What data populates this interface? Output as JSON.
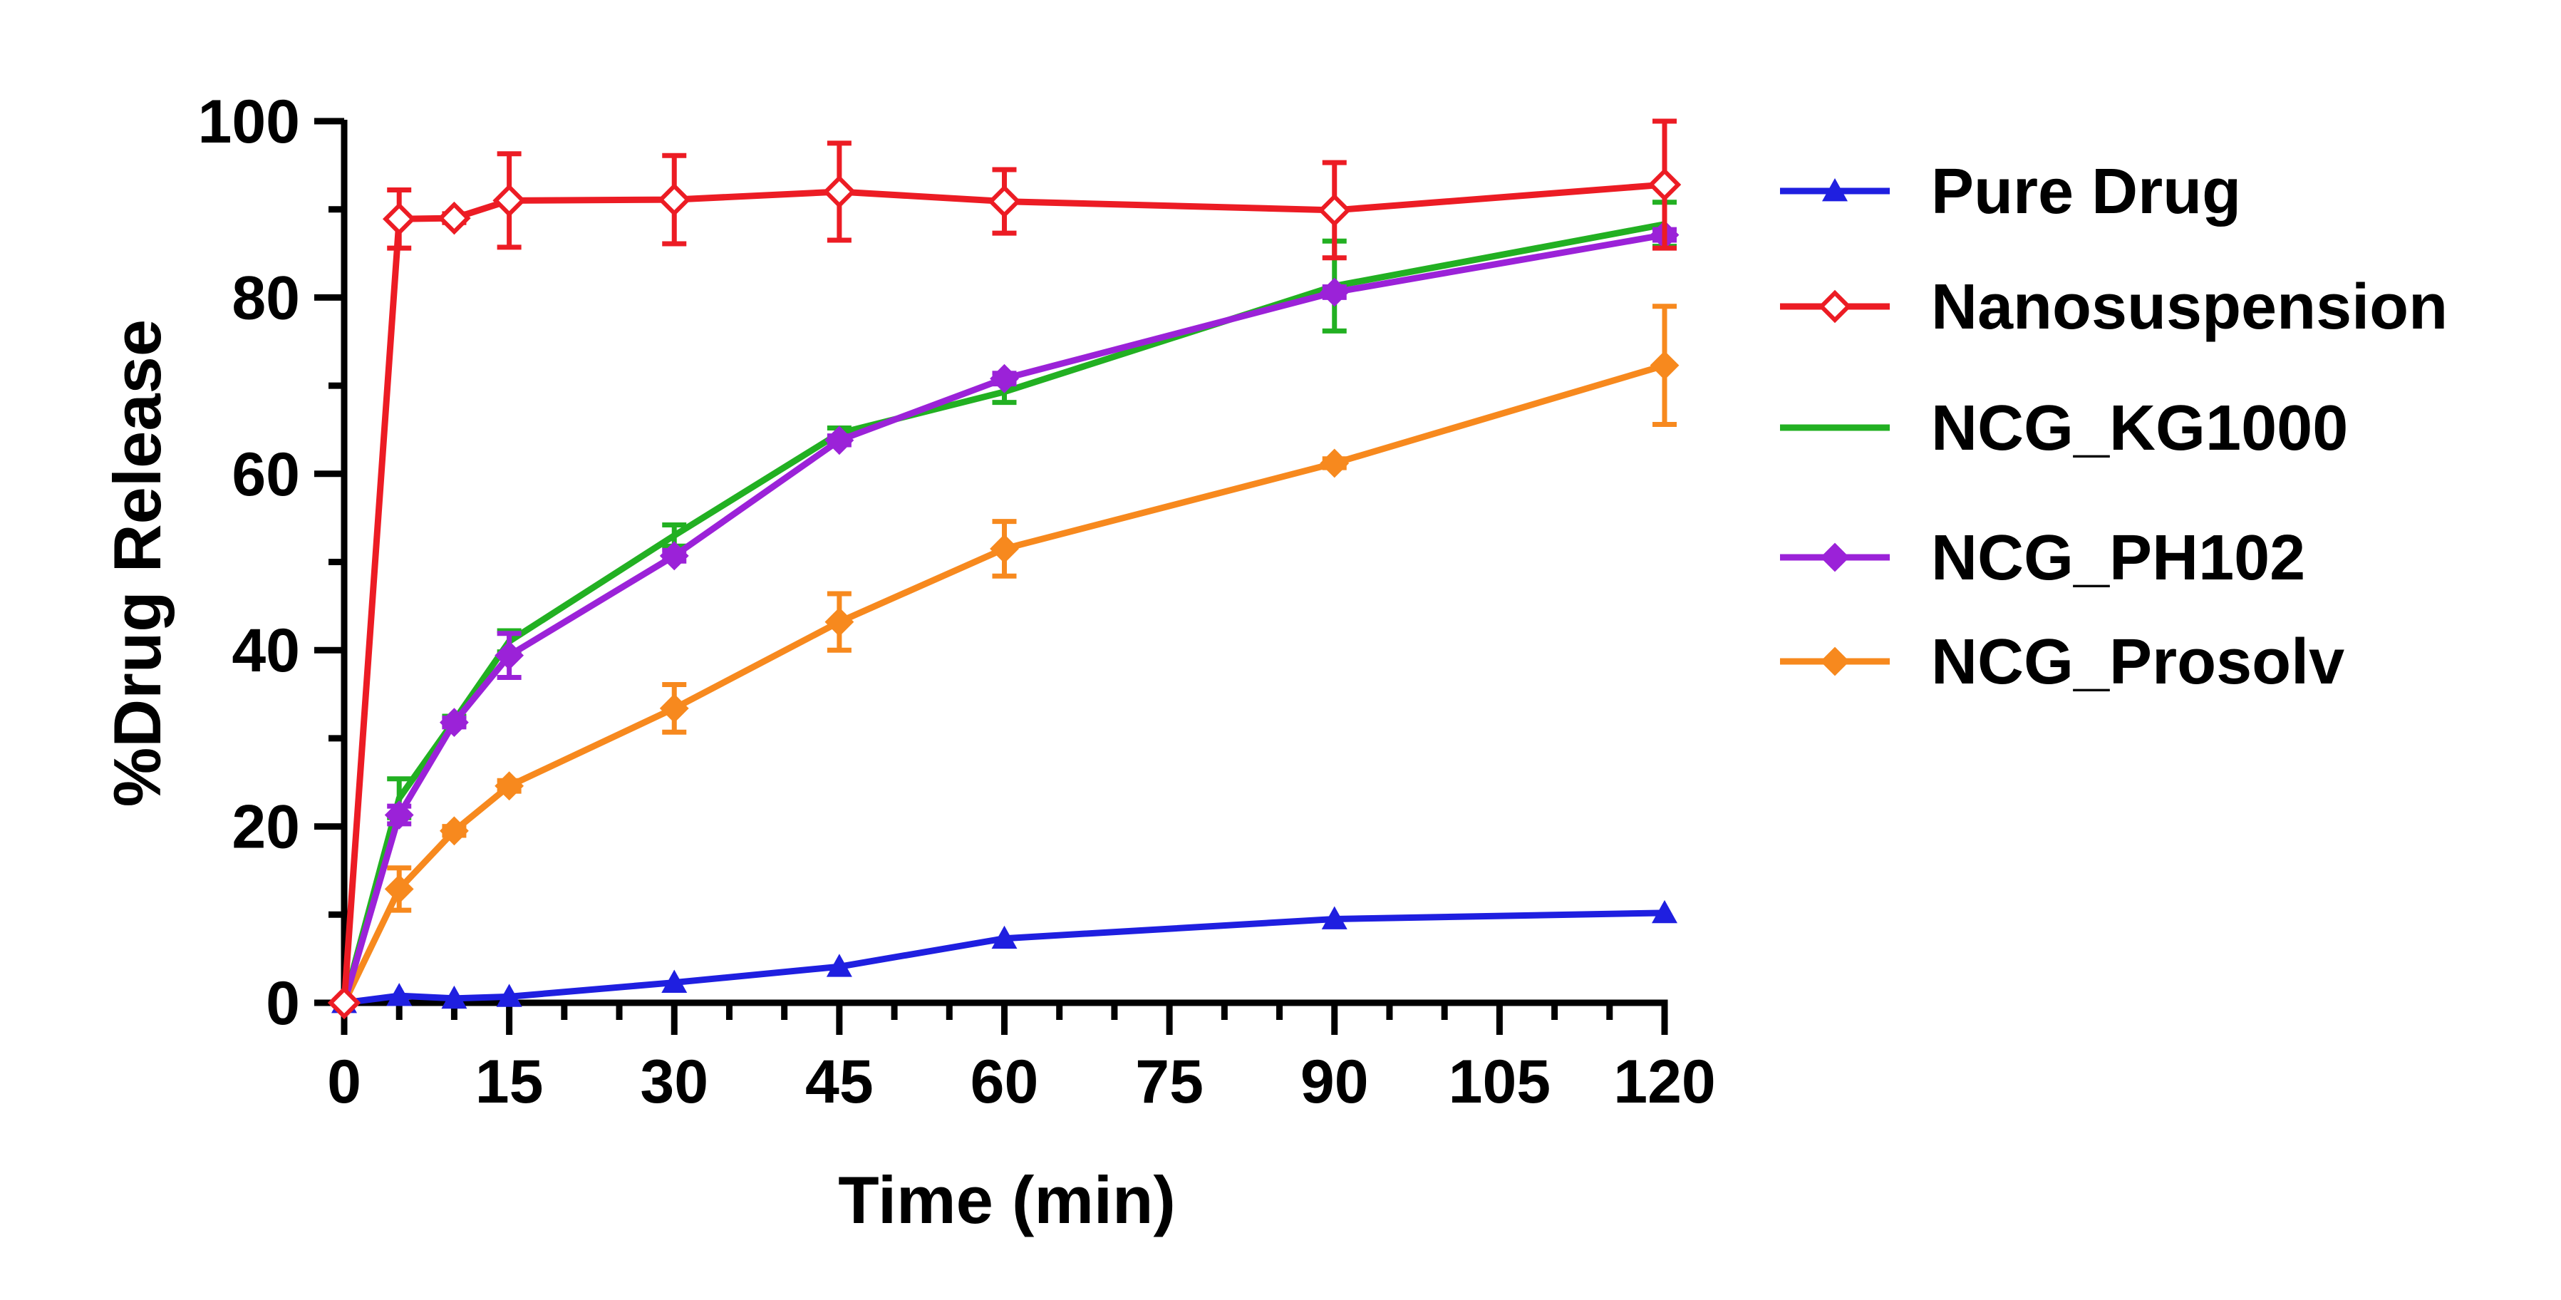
{
  "chart_data": {
    "type": "line",
    "title": "",
    "xlabel": "Time (min)",
    "ylabel": "%Drug Release",
    "xlim": [
      0,
      120
    ],
    "ylim": [
      0,
      100
    ],
    "x_ticks": [
      0,
      15,
      30,
      45,
      60,
      75,
      90,
      105,
      120
    ],
    "y_ticks": [
      0,
      20,
      40,
      60,
      80,
      100
    ],
    "grid": false,
    "legend_position": "right",
    "x": [
      0,
      5,
      10,
      15,
      30,
      45,
      60,
      90,
      120
    ],
    "series": [
      {
        "name": "Pure Drug",
        "color": "#1f1fe0",
        "marker": "triangle",
        "values": [
          0,
          0.8,
          0.5,
          0.7,
          2.3,
          4.1,
          7.3,
          9.5,
          10.2
        ],
        "errors": [
          0,
          0,
          0,
          0,
          0,
          0,
          0,
          0,
          0
        ]
      },
      {
        "name": "Nanosuspension",
        "color": "#ec1c24",
        "marker": "diamond-open",
        "values": [
          0,
          88.9,
          89.0,
          91.0,
          91.1,
          92.0,
          90.9,
          89.9,
          92.8
        ],
        "errors": [
          0,
          3.3,
          0.5,
          5.3,
          5.0,
          5.5,
          3.6,
          5.4,
          7.2
        ]
      },
      {
        "name": "NCG_KG1000",
        "color": "#22b022",
        "marker": "none",
        "values": [
          0,
          23.2,
          32.0,
          41.0,
          53.0,
          64.6,
          69.3,
          81.3,
          88.3
        ],
        "errors": [
          0,
          2.2,
          0.5,
          1.2,
          1.2,
          0.6,
          1.2,
          5.1,
          2.5
        ]
      },
      {
        "name": "NCG_PH102",
        "color": "#9b22d8",
        "marker": "diamond",
        "values": [
          0,
          21.3,
          31.8,
          39.4,
          50.7,
          63.8,
          70.8,
          80.6,
          87.1
        ],
        "errors": [
          0,
          1.0,
          0.5,
          2.5,
          0.6,
          0.5,
          0.6,
          0.6,
          0.6
        ]
      },
      {
        "name": "NCG_Prosolv",
        "color": "#f7891e",
        "marker": "diamond",
        "values": [
          0,
          12.9,
          19.5,
          24.6,
          33.4,
          43.2,
          51.5,
          61.2,
          72.3
        ],
        "errors": [
          0,
          2.4,
          0.5,
          0.6,
          2.7,
          3.2,
          3.1,
          0.5,
          6.7
        ]
      }
    ]
  }
}
